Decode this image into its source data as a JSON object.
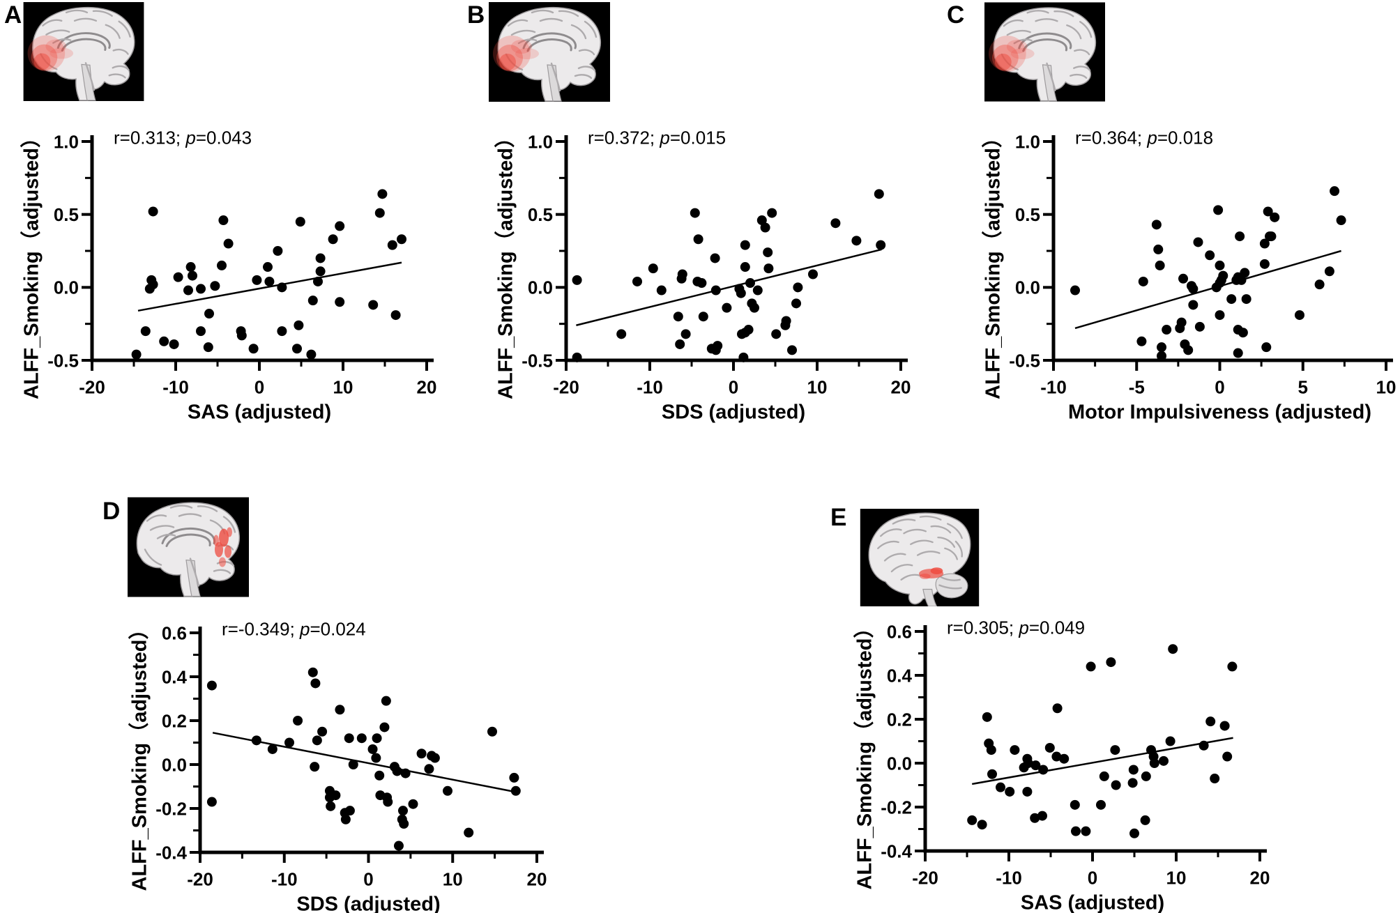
{
  "figure": {
    "background": "#ffffff",
    "colors": {
      "ink": "#000000",
      "brain_bg": "#000000",
      "brain_tissue": "#eceaeb",
      "brain_shade": "#9d9a9c",
      "highlight_red": "#ee4b40"
    },
    "panels": [
      {
        "label": "A",
        "stats": {
          "prefix": "r=0.313; ",
          "italic_var": "p",
          "suffix": "=0.043"
        },
        "brain": {
          "view": "medial-sagittal",
          "highlight_region": "frontal"
        }
      },
      {
        "label": "B",
        "stats": {
          "prefix": "r=0.372; ",
          "italic_var": "p",
          "suffix": "=0.015"
        },
        "brain": {
          "view": "medial-sagittal",
          "highlight_region": "frontal"
        }
      },
      {
        "label": "C",
        "stats": {
          "prefix": "r=0.364; ",
          "italic_var": "p",
          "suffix": "=0.018"
        },
        "brain": {
          "view": "medial-sagittal",
          "highlight_region": "frontal"
        }
      },
      {
        "label": "D",
        "stats": {
          "prefix": "r=-0.349; ",
          "italic_var": "p",
          "suffix": "=0.024"
        },
        "brain": {
          "view": "medial-sagittal",
          "highlight_region": "posterior"
        }
      },
      {
        "label": "E",
        "stats": {
          "prefix": "r=0.305; ",
          "italic_var": "p",
          "suffix": "=0.049"
        },
        "brain": {
          "view": "lateral-sagittal",
          "highlight_region": "temporal"
        }
      }
    ]
  },
  "chart_data": [
    {
      "type": "scatter",
      "annotation": "r=0.313; p=0.043",
      "xlabel": "SAS (adjusted)",
      "ylabel": "ALFF_Smoking（adjusted）",
      "xlim": [
        -20,
        20
      ],
      "ylim": [
        -0.5,
        1.0
      ],
      "xticks": [
        -20,
        -10,
        0,
        10,
        20
      ],
      "x_minor_ticks": [
        -15,
        -5,
        5,
        15
      ],
      "yticks": [
        1.0,
        0.5,
        0.0,
        -0.5
      ],
      "y_minor_ticks": [
        0.75,
        0.25,
        -0.25
      ],
      "y_tick_decimals": 1,
      "grid": false,
      "regression_line": {
        "x1": -14.5,
        "y1": -0.16,
        "x2": 17.0,
        "y2": 0.17
      },
      "points": [
        [
          -12.7,
          0.52
        ],
        [
          -4.3,
          0.46
        ],
        [
          4.9,
          0.45
        ],
        [
          9.6,
          0.42
        ],
        [
          14.7,
          0.64
        ],
        [
          14.4,
          0.51
        ],
        [
          8.8,
          0.33
        ],
        [
          17.0,
          0.33
        ],
        [
          15.9,
          0.29
        ],
        [
          -3.7,
          0.3
        ],
        [
          2.2,
          0.25
        ],
        [
          7.3,
          0.2
        ],
        [
          1.0,
          0.14
        ],
        [
          -4.5,
          0.15
        ],
        [
          -8.2,
          0.14
        ],
        [
          -8.0,
          0.08
        ],
        [
          -9.7,
          0.07
        ],
        [
          7.3,
          0.11
        ],
        [
          7.0,
          0.04
        ],
        [
          -0.3,
          0.05
        ],
        [
          1.2,
          0.04
        ],
        [
          -12.9,
          0.05
        ],
        [
          -12.7,
          0.02
        ],
        [
          -13.1,
          -0.01
        ],
        [
          -8.5,
          -0.02
        ],
        [
          -7.0,
          -0.01
        ],
        [
          -5.3,
          0.01
        ],
        [
          2.7,
          0.0
        ],
        [
          6.4,
          -0.09
        ],
        [
          9.6,
          -0.1
        ],
        [
          13.6,
          -0.12
        ],
        [
          16.3,
          -0.19
        ],
        [
          -6.0,
          -0.18
        ],
        [
          4.7,
          -0.26
        ],
        [
          -2.2,
          -0.3
        ],
        [
          -2.1,
          -0.33
        ],
        [
          -7.0,
          -0.3
        ],
        [
          2.7,
          -0.3
        ],
        [
          -13.6,
          -0.3
        ],
        [
          -11.4,
          -0.37
        ],
        [
          -10.2,
          -0.39
        ],
        [
          -6.1,
          -0.41
        ],
        [
          -0.7,
          -0.42
        ],
        [
          4.5,
          -0.42
        ],
        [
          6.2,
          -0.46
        ],
        [
          -14.7,
          -0.46
        ]
      ]
    },
    {
      "type": "scatter",
      "annotation": "r=0.372; p=0.015",
      "xlabel": "SDS (adjusted)",
      "ylabel": "ALFF_Smoking（adjusted）",
      "xlim": [
        -20,
        20
      ],
      "ylim": [
        -0.5,
        1.0
      ],
      "xticks": [
        -20,
        -10,
        0,
        10,
        20
      ],
      "x_minor_ticks": [
        -15,
        -5,
        5,
        15
      ],
      "yticks": [
        1.0,
        0.5,
        0.0,
        -0.5
      ],
      "y_minor_ticks": [
        0.75,
        0.25,
        -0.25
      ],
      "y_tick_decimals": 1,
      "grid": false,
      "regression_line": {
        "x1": -18.8,
        "y1": -0.26,
        "x2": 17.7,
        "y2": 0.26
      },
      "points": [
        [
          -18.7,
          0.05
        ],
        [
          -18.7,
          -0.48
        ],
        [
          -13.4,
          -0.32
        ],
        [
          -11.5,
          0.04
        ],
        [
          -9.6,
          0.13
        ],
        [
          -8.6,
          -0.02
        ],
        [
          -6.6,
          -0.2
        ],
        [
          -6.4,
          -0.39
        ],
        [
          -6.2,
          0.06
        ],
        [
          -6.1,
          0.09
        ],
        [
          -5.7,
          -0.32
        ],
        [
          -4.6,
          0.51
        ],
        [
          -4.2,
          0.33
        ],
        [
          -4.3,
          0.04
        ],
        [
          -3.8,
          0.03
        ],
        [
          -3.6,
          -0.2
        ],
        [
          -2.2,
          0.2
        ],
        [
          -2.1,
          -0.02
        ],
        [
          -2.6,
          -0.42
        ],
        [
          -2.1,
          -0.43
        ],
        [
          -1.9,
          -0.4
        ],
        [
          -0.8,
          -0.14
        ],
        [
          0.7,
          -0.01
        ],
        [
          0.9,
          -0.04
        ],
        [
          1.4,
          0.29
        ],
        [
          1.4,
          0.14
        ],
        [
          1.0,
          -0.32
        ],
        [
          1.4,
          -0.31
        ],
        [
          1.8,
          -0.29
        ],
        [
          1.2,
          -0.48
        ],
        [
          2.0,
          0.03
        ],
        [
          2.2,
          -0.11
        ],
        [
          2.5,
          -0.14
        ],
        [
          2.9,
          -0.02
        ],
        [
          3.4,
          0.46
        ],
        [
          3.8,
          0.41
        ],
        [
          4.1,
          0.24
        ],
        [
          4.2,
          0.13
        ],
        [
          4.6,
          0.51
        ],
        [
          5.1,
          -0.32
        ],
        [
          6.2,
          -0.26
        ],
        [
          6.3,
          -0.23
        ],
        [
          7.0,
          -0.43
        ],
        [
          7.5,
          -0.11
        ],
        [
          7.7,
          0.0
        ],
        [
          9.5,
          0.09
        ],
        [
          12.2,
          0.44
        ],
        [
          14.7,
          0.32
        ],
        [
          17.4,
          0.64
        ],
        [
          17.6,
          0.29
        ]
      ]
    },
    {
      "type": "scatter",
      "annotation": "r=0.364; p=0.018",
      "xlabel": "Motor Impulsiveness (adjusted)",
      "ylabel": "ALFF_Smoking（adjusted）",
      "xlim": [
        -10,
        10
      ],
      "ylim": [
        -0.5,
        1.0
      ],
      "xticks": [
        -10,
        -5,
        0,
        5,
        10
      ],
      "x_minor_ticks": [
        -7.5,
        -2.5,
        2.5,
        7.5
      ],
      "yticks": [
        1.0,
        0.5,
        0.0,
        -0.5
      ],
      "y_minor_ticks": [
        0.75,
        0.25,
        -0.25
      ],
      "y_tick_decimals": 1,
      "grid": false,
      "regression_line": {
        "x1": -8.7,
        "y1": -0.28,
        "x2": 7.3,
        "y2": 0.25
      },
      "points": [
        [
          -8.7,
          -0.02
        ],
        [
          -4.6,
          0.04
        ],
        [
          -4.7,
          -0.37
        ],
        [
          -3.8,
          0.43
        ],
        [
          -3.7,
          0.26
        ],
        [
          -3.6,
          0.15
        ],
        [
          -3.5,
          -0.41
        ],
        [
          -3.5,
          -0.47
        ],
        [
          -3.2,
          -0.29
        ],
        [
          -2.4,
          -0.28
        ],
        [
          -2.3,
          -0.24
        ],
        [
          -2.2,
          0.06
        ],
        [
          -2.1,
          -0.39
        ],
        [
          -1.9,
          -0.43
        ],
        [
          -1.7,
          0.01
        ],
        [
          -1.6,
          -0.12
        ],
        [
          -1.6,
          -0.01
        ],
        [
          -1.3,
          0.31
        ],
        [
          -1.2,
          -0.27
        ],
        [
          -0.6,
          0.22
        ],
        [
          -0.1,
          0.53
        ],
        [
          0.0,
          0.15
        ],
        [
          -0.2,
          0.0
        ],
        [
          0.0,
          0.03
        ],
        [
          0.1,
          0.05
        ],
        [
          0.2,
          0.08
        ],
        [
          0.0,
          -0.19
        ],
        [
          0.7,
          -0.08
        ],
        [
          1.0,
          0.05
        ],
        [
          1.1,
          0.07
        ],
        [
          1.2,
          0.35
        ],
        [
          1.3,
          0.05
        ],
        [
          1.5,
          0.1
        ],
        [
          1.6,
          -0.08
        ],
        [
          1.1,
          -0.29
        ],
        [
          1.4,
          -0.31
        ],
        [
          1.1,
          -0.45
        ],
        [
          2.7,
          0.16
        ],
        [
          2.7,
          0.3
        ],
        [
          2.9,
          0.52
        ],
        [
          3.0,
          0.35
        ],
        [
          3.1,
          0.35
        ],
        [
          3.3,
          0.48
        ],
        [
          2.8,
          -0.41
        ],
        [
          4.8,
          -0.19
        ],
        [
          6.0,
          0.02
        ],
        [
          6.6,
          0.11
        ],
        [
          6.9,
          0.66
        ],
        [
          7.3,
          0.46
        ]
      ]
    },
    {
      "type": "scatter",
      "annotation": "r=-0.349; p=0.024",
      "xlabel": "SDS (adjusted)",
      "ylabel": "ALFF_Smoking（adjusted）",
      "xlim": [
        -20,
        20
      ],
      "ylim": [
        -0.4,
        0.6
      ],
      "xticks": [
        -20,
        -10,
        0,
        10,
        20
      ],
      "x_minor_ticks": [
        -15,
        -5,
        5,
        15
      ],
      "yticks": [
        0.6,
        0.4,
        0.2,
        0.0,
        -0.2,
        -0.4
      ],
      "y_minor_ticks": [
        0.5,
        0.3,
        0.1,
        -0.1,
        -0.3
      ],
      "y_tick_decimals": 1,
      "grid": false,
      "regression_line": {
        "x1": -18.5,
        "y1": 0.145,
        "x2": 17.5,
        "y2": -0.125
      },
      "points": [
        [
          -18.6,
          0.36
        ],
        [
          -18.6,
          -0.17
        ],
        [
          -13.3,
          0.11
        ],
        [
          -11.4,
          0.07
        ],
        [
          -9.4,
          0.1
        ],
        [
          -8.4,
          0.2
        ],
        [
          -6.6,
          0.42
        ],
        [
          -6.3,
          0.37
        ],
        [
          -6.1,
          0.11
        ],
        [
          -6.4,
          -0.01
        ],
        [
          -5.5,
          0.15
        ],
        [
          -4.6,
          -0.12
        ],
        [
          -4.6,
          -0.15
        ],
        [
          -4.5,
          -0.19
        ],
        [
          -3.9,
          -0.14
        ],
        [
          -3.4,
          0.25
        ],
        [
          -2.8,
          -0.22
        ],
        [
          -2.7,
          -0.25
        ],
        [
          -2.2,
          -0.21
        ],
        [
          -2.3,
          0.12
        ],
        [
          -1.8,
          0.0
        ],
        [
          -0.8,
          0.12
        ],
        [
          0.5,
          0.07
        ],
        [
          0.9,
          0.03
        ],
        [
          1.0,
          0.12
        ],
        [
          1.3,
          -0.05
        ],
        [
          1.4,
          -0.14
        ],
        [
          1.9,
          0.17
        ],
        [
          2.1,
          0.29
        ],
        [
          2.2,
          -0.15
        ],
        [
          2.3,
          -0.17
        ],
        [
          3.1,
          -0.01
        ],
        [
          3.4,
          -0.03
        ],
        [
          3.6,
          -0.37
        ],
        [
          4.0,
          -0.25
        ],
        [
          4.1,
          -0.21
        ],
        [
          4.2,
          -0.27
        ],
        [
          4.4,
          -0.04
        ],
        [
          5.3,
          -0.18
        ],
        [
          6.3,
          0.05
        ],
        [
          7.2,
          -0.02
        ],
        [
          7.5,
          0.04
        ],
        [
          7.9,
          0.03
        ],
        [
          9.4,
          -0.12
        ],
        [
          11.9,
          -0.31
        ],
        [
          14.7,
          0.15
        ],
        [
          17.3,
          -0.06
        ],
        [
          17.5,
          -0.12
        ]
      ]
    },
    {
      "type": "scatter",
      "annotation": "r=0.305; p=0.049",
      "xlabel": "SAS (adjusted)",
      "ylabel": "ALFF_Smoking（adjusted）",
      "xlim": [
        -20,
        20
      ],
      "ylim": [
        -0.4,
        0.6
      ],
      "xticks": [
        -20,
        -10,
        0,
        10,
        20
      ],
      "x_minor_ticks": [
        -15,
        -5,
        5,
        15
      ],
      "yticks": [
        0.6,
        0.4,
        0.2,
        0.0,
        -0.2,
        -0.4
      ],
      "y_minor_ticks": [
        0.5,
        0.3,
        0.1,
        -0.1,
        -0.3
      ],
      "y_tick_decimals": 1,
      "grid": false,
      "regression_line": {
        "x1": -14.4,
        "y1": -0.095,
        "x2": 16.8,
        "y2": 0.115
      },
      "points": [
        [
          -14.4,
          -0.26
        ],
        [
          -13.2,
          -0.28
        ],
        [
          -12.6,
          0.21
        ],
        [
          -12.4,
          0.09
        ],
        [
          -12.1,
          0.06
        ],
        [
          -12.0,
          -0.05
        ],
        [
          -11.0,
          -0.11
        ],
        [
          -9.9,
          -0.13
        ],
        [
          -9.3,
          0.06
        ],
        [
          -8.2,
          -0.02
        ],
        [
          -7.8,
          0.02
        ],
        [
          -7.7,
          0.0
        ],
        [
          -7.8,
          -0.13
        ],
        [
          -6.8,
          -0.01
        ],
        [
          -6.9,
          -0.25
        ],
        [
          -6.0,
          -0.24
        ],
        [
          -5.9,
          -0.03
        ],
        [
          -5.1,
          0.07
        ],
        [
          -4.2,
          0.25
        ],
        [
          -4.3,
          0.03
        ],
        [
          -3.4,
          0.02
        ],
        [
          -2.1,
          -0.19
        ],
        [
          -2.0,
          -0.31
        ],
        [
          -0.8,
          -0.31
        ],
        [
          -0.2,
          0.44
        ],
        [
          1.0,
          -0.19
        ],
        [
          1.4,
          -0.06
        ],
        [
          2.2,
          0.46
        ],
        [
          2.7,
          0.06
        ],
        [
          2.8,
          -0.1
        ],
        [
          4.8,
          -0.09
        ],
        [
          4.9,
          -0.03
        ],
        [
          5.0,
          -0.32
        ],
        [
          6.3,
          -0.26
        ],
        [
          6.4,
          -0.06
        ],
        [
          7.0,
          0.06
        ],
        [
          7.3,
          0.03
        ],
        [
          7.4,
          0.0
        ],
        [
          8.5,
          0.01
        ],
        [
          9.3,
          0.1
        ],
        [
          9.6,
          0.52
        ],
        [
          13.3,
          0.08
        ],
        [
          14.1,
          0.19
        ],
        [
          14.6,
          -0.07
        ],
        [
          15.8,
          0.17
        ],
        [
          16.1,
          0.03
        ],
        [
          16.7,
          0.44
        ]
      ]
    }
  ]
}
